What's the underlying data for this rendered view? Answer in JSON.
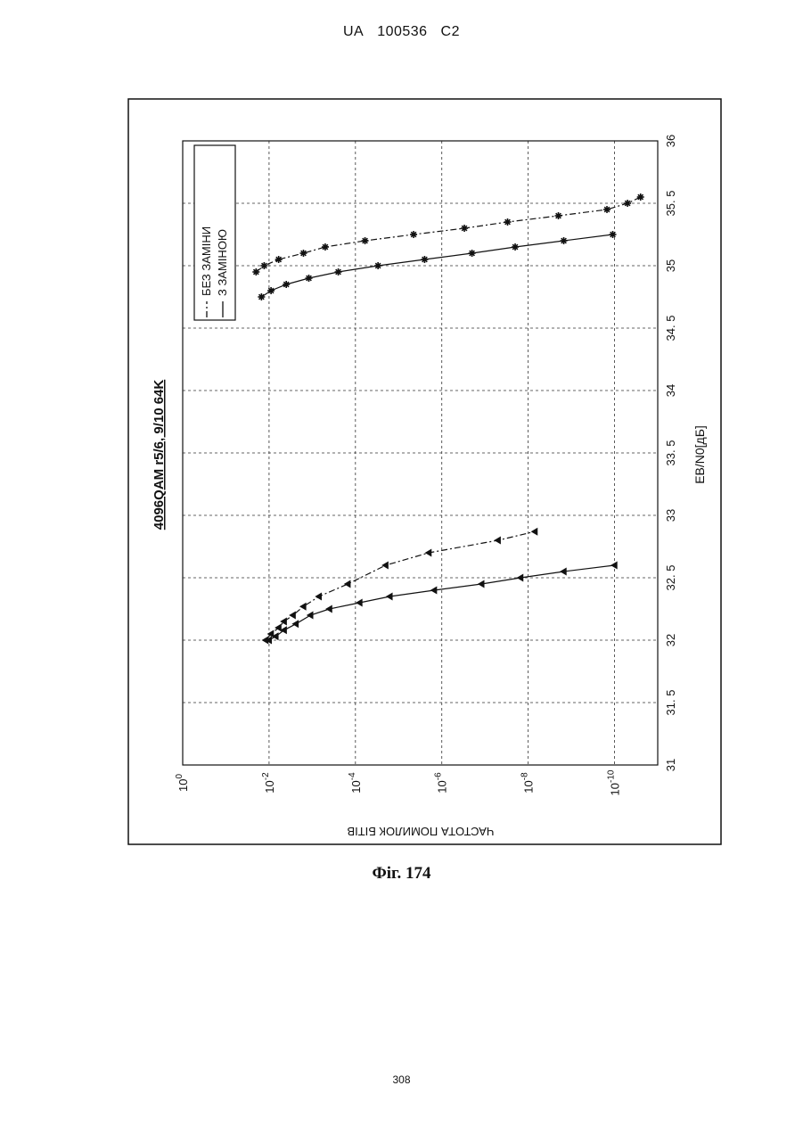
{
  "header": {
    "country": "UA",
    "number": "100536",
    "kind": "C2"
  },
  "figure_caption": "Фіг. 174",
  "page_number": "308",
  "chart_data": {
    "type": "line",
    "title": "4096QAM r5/6, 9/10 64K",
    "xlabel": "EB/N0[дБ]",
    "ylabel": "ЧАСТОТА ПОМИЛОК БІТІВ",
    "xlim": [
      31,
      36
    ],
    "ylim": [
      1e-11,
      1
    ],
    "y_scale": "log",
    "x_ticks": [
      "31",
      "31.5",
      "32",
      "32.5",
      "33",
      "33.5",
      "34",
      "34.5",
      "35",
      "35.5",
      "36"
    ],
    "y_ticks": [
      {
        "base": "10",
        "exp": "0"
      },
      {
        "base": "10",
        "exp": "-2"
      },
      {
        "base": "10",
        "exp": "-4"
      },
      {
        "base": "10",
        "exp": "-6"
      },
      {
        "base": "10",
        "exp": "-8"
      },
      {
        "base": "10",
        "exp": "-10"
      }
    ],
    "grid": true,
    "legend_position": "top-right",
    "rotation": "chart rotated 90 degrees counter-clockwise on page",
    "legend": [
      {
        "label": "БЕЗ ЗАМІНИ",
        "style": "dash-dot"
      },
      {
        "label": "З ЗАМІНОЮ",
        "style": "solid"
      }
    ],
    "series": [
      {
        "legend_ref": 0,
        "marker": "triangle",
        "dash": "dash-dot",
        "x": [
          32.0,
          32.05,
          32.1,
          32.15,
          32.2,
          32.27,
          32.35,
          32.45,
          32.6,
          32.7,
          32.8,
          32.87
        ],
        "y": [
          0.012,
          0.009,
          0.006,
          0.0045,
          0.0028,
          0.0016,
          0.0007,
          0.00015,
          2e-05,
          2e-06,
          5e-08,
          7e-09
        ]
      },
      {
        "legend_ref": 1,
        "marker": "triangle",
        "dash": "solid",
        "x": [
          32.0,
          32.03,
          32.08,
          32.13,
          32.2,
          32.25,
          32.3,
          32.35,
          32.4,
          32.45,
          32.5,
          32.55,
          32.6
        ],
        "y": [
          0.01,
          0.007,
          0.0045,
          0.0024,
          0.0011,
          0.0004,
          8e-05,
          1.6e-05,
          1.5e-06,
          1.2e-07,
          1.5e-08,
          1.5e-09,
          1e-10
        ]
      },
      {
        "legend_ref": 0,
        "marker": "star",
        "dash": "dash-dot",
        "x": [
          34.95,
          35.0,
          35.05,
          35.1,
          35.15,
          35.2,
          35.25,
          35.3,
          35.35,
          35.4,
          35.45,
          35.5,
          35.55
        ],
        "y": [
          0.02,
          0.013,
          0.006,
          0.0016,
          0.0005,
          6e-05,
          4.5e-06,
          3e-07,
          3e-08,
          2e-09,
          1.5e-10,
          5e-11,
          2.5e-11
        ]
      },
      {
        "legend_ref": 1,
        "marker": "star",
        "dash": "solid",
        "x": [
          34.75,
          34.8,
          34.85,
          34.9,
          34.95,
          35.0,
          35.05,
          35.1,
          35.15,
          35.2,
          35.25
        ],
        "y": [
          0.015,
          0.009,
          0.004,
          0.0012,
          0.00025,
          3e-05,
          2.5e-06,
          2e-07,
          2e-08,
          1.5e-09,
          1.1e-10
        ]
      }
    ]
  }
}
